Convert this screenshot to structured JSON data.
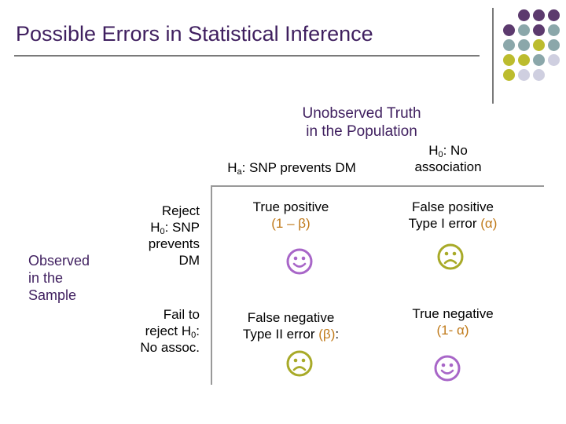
{
  "slide": {
    "title": "Possible Errors in Statistical Inference",
    "header": {
      "top_line1": "Unobserved Truth",
      "top_line2": "in the Population",
      "col1_prefix": "H",
      "col1_sub": "a",
      "col1_text": ": SNP prevents DM",
      "col2_prefix": "H",
      "col2_sub": "0",
      "col2_text": ": No",
      "col2_line2": "association"
    },
    "rows_header": {
      "line1": "Observed",
      "line2": "in the",
      "line3": "Sample"
    },
    "row1_label": {
      "line1": "Reject",
      "line2_prefix": "H",
      "line2_sub": "0",
      "line2_text": ": SNP",
      "line3": "prevents",
      "line4": "DM"
    },
    "row2_label": {
      "line1": "Fail to",
      "line2_prefix": "reject H",
      "line2_sub": "0",
      "line2_text": ":",
      "line3": "No assoc."
    },
    "cells": {
      "tp_line1": "True positive",
      "tp_line2": "(1 – β)",
      "fp_line1": "False positive",
      "fp_line2_prefix": "Type I error ",
      "fp_line2_accent": "(α)",
      "fn_line1": "False negative",
      "fn_line2_prefix": "Type II error ",
      "fn_line2_accent": "(β)",
      "fn_line2_suffix": ":",
      "tn_line1": "True negative",
      "tn_line2": "(1- α)"
    },
    "colors": {
      "title": "#3f1f5f",
      "accent": "#c07a1a",
      "face_happy": "#a866c8",
      "face_sad": "#a8aa28",
      "dot_purple": "#5c3a6e",
      "dot_teal": "#8ba7aa",
      "dot_olive": "#bcbc2e",
      "dot_lavender": "#cfcfe0"
    },
    "icons": [
      "happy-face-icon",
      "sad-face-icon"
    ]
  }
}
